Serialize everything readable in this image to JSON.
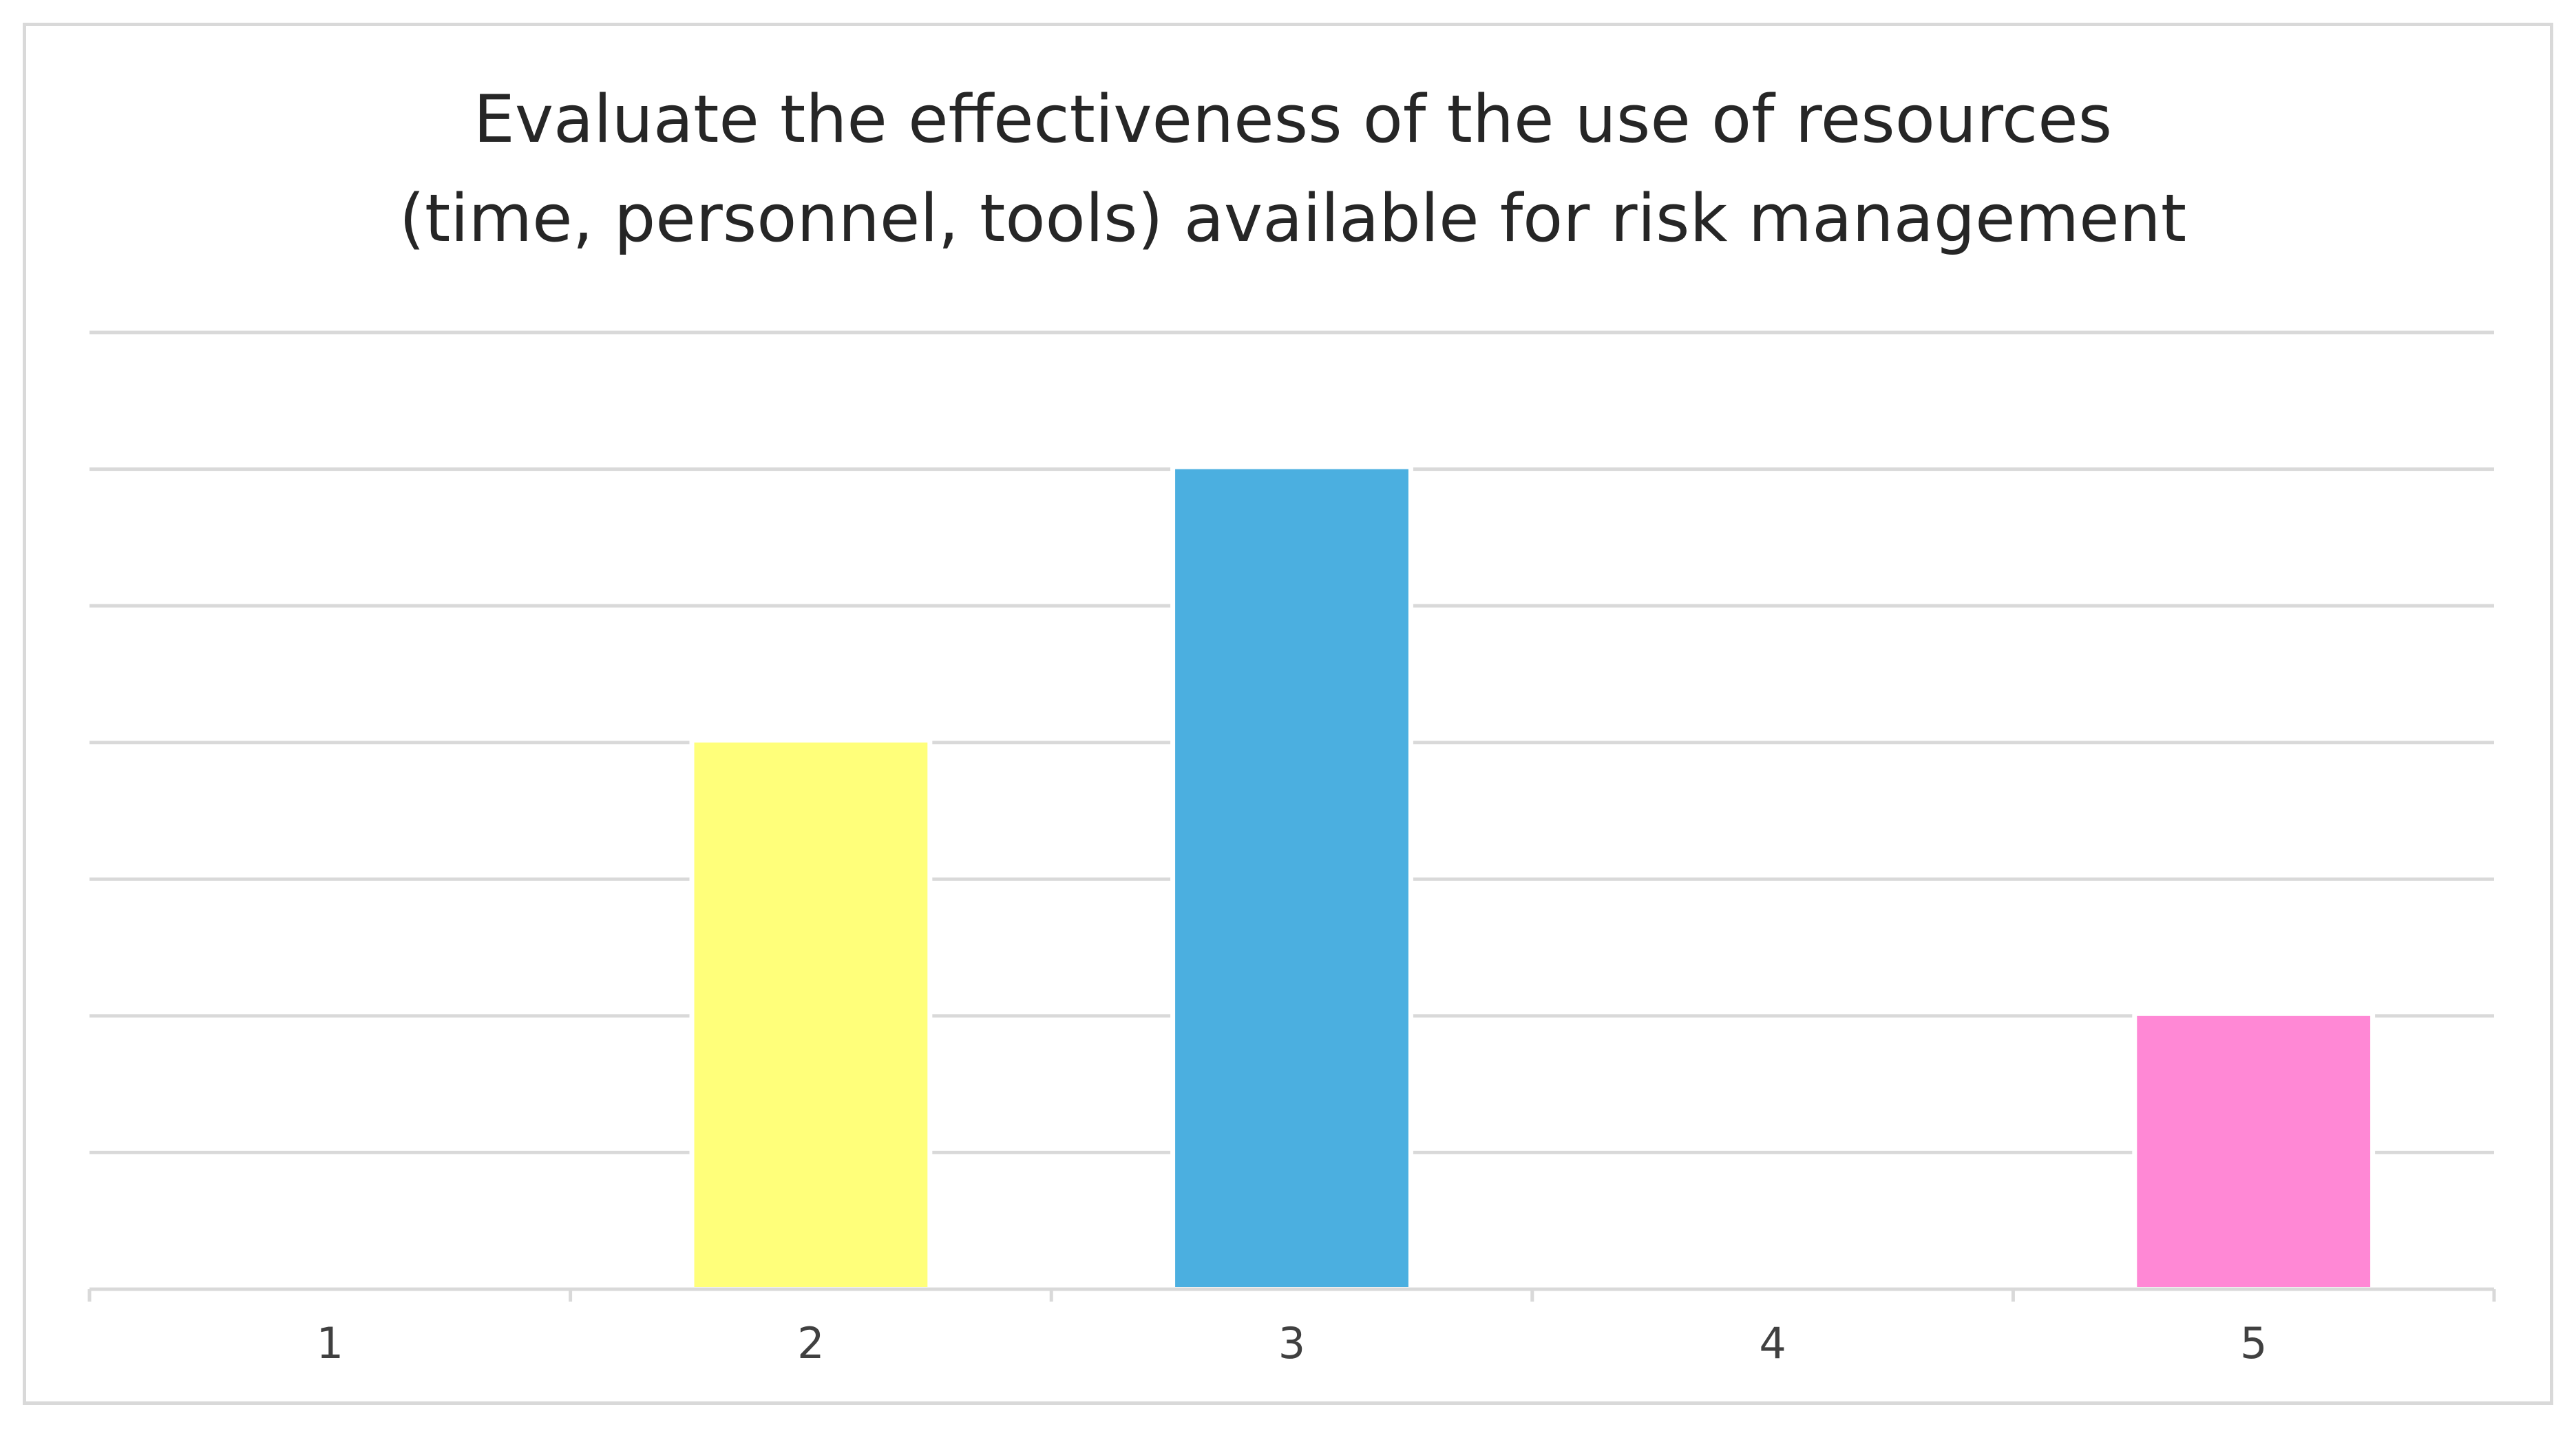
{
  "chart_data": {
    "type": "bar",
    "title_lines": [
      "Evaluate the effectiveness of the use of resources",
      "(time, personnel, tools) available for risk management"
    ],
    "categories": [
      "1",
      "2",
      "3",
      "4",
      "5"
    ],
    "values": [
      0,
      4,
      6,
      0,
      2
    ],
    "colors": [
      "#4bafe0",
      "#ffff7a",
      "#4bafe0",
      "#4bafe0",
      "#ff88d5"
    ],
    "ylim": [
      0,
      7
    ],
    "y_gridline_step": 1,
    "grid": true,
    "xlabel": "",
    "ylabel": "",
    "legend": "none"
  }
}
